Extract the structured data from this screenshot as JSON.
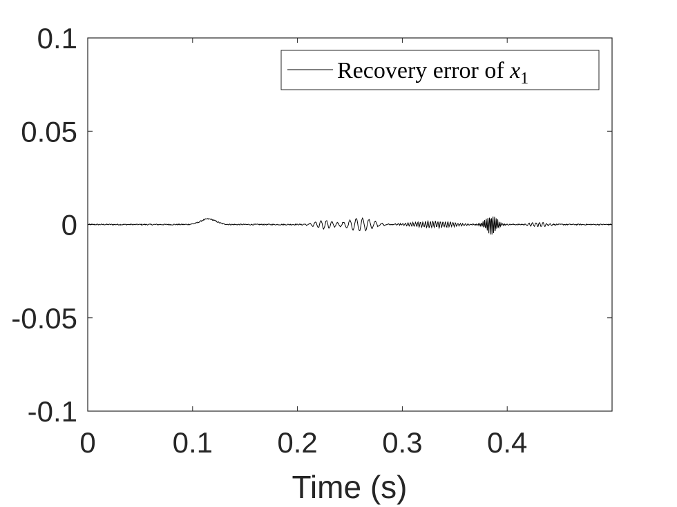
{
  "chart_data": {
    "type": "line",
    "title": "",
    "xlabel": "Time (s)",
    "ylabel": "",
    "xlim": [
      0,
      0.5
    ],
    "ylim": [
      -0.1,
      0.1
    ],
    "x_ticks": [
      0,
      0.1,
      0.2,
      0.3,
      0.4
    ],
    "x_tick_labels": [
      "0",
      "0.1",
      "0.2",
      "0.3",
      "0.4"
    ],
    "y_ticks": [
      -0.1,
      -0.05,
      0,
      0.05,
      0.1
    ],
    "y_tick_labels": [
      "-0.1",
      "-0.05",
      "0",
      "0.05",
      "0.1"
    ],
    "grid": false,
    "legend_position": "top-right",
    "series": [
      {
        "name": "Recovery error of x1",
        "legend_prefix": "Recovery error of ",
        "legend_var": "x",
        "legend_sub": "1",
        "color": "#000000",
        "sample_rate_hz": 2000,
        "x_start": 0,
        "x_end": 0.5,
        "components": [
          {
            "shape": "noise",
            "amplitude": 0.0003
          },
          {
            "shape": "bump",
            "center": 0.115,
            "width": 0.01,
            "amplitude": 0.003
          },
          {
            "shape": "burst",
            "center": 0.225,
            "width": 0.012,
            "amplitude": 0.0022,
            "freq_hz": 190
          },
          {
            "shape": "burst",
            "center": 0.26,
            "width": 0.016,
            "amplitude": 0.0035,
            "freq_hz": 165
          },
          {
            "shape": "burst",
            "center": 0.33,
            "width": 0.025,
            "amplitude": 0.0018,
            "freq_hz": 420
          },
          {
            "shape": "burst",
            "center": 0.385,
            "width": 0.007,
            "amplitude": 0.0055,
            "freq_hz": 640
          },
          {
            "shape": "burst",
            "center": 0.43,
            "width": 0.01,
            "amplitude": 0.0012,
            "freq_hz": 300
          }
        ]
      }
    ]
  }
}
